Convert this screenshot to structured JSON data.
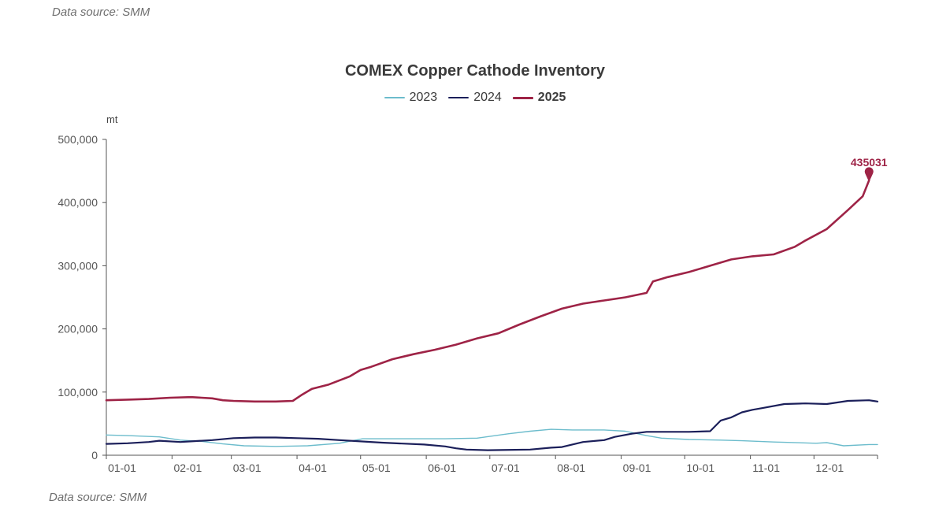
{
  "page": {
    "source_top": "Data source:  SMM",
    "source_bottom": "Data source:  SMM"
  },
  "colors": {
    "s2023": "#6cbccc",
    "s2024": "#1b1f5a",
    "s2025": "#9e2346",
    "axis": "#555555"
  },
  "chart_data": {
    "type": "line",
    "title": "COMEX Copper Cathode Inventory",
    "ylabel": "mt",
    "xlabel": "",
    "ylim": [
      0,
      500000
    ],
    "yticks": [
      0,
      100000,
      200000,
      300000,
      400000,
      500000
    ],
    "ytick_labels": [
      "0",
      "100,000",
      "200,000",
      "300,000",
      "400,000",
      "500,000"
    ],
    "xlim": [
      0,
      364
    ],
    "xticks": [
      0,
      31,
      59,
      90,
      120,
      151,
      181,
      212,
      243,
      273,
      304,
      334
    ],
    "xtick_labels": [
      "01-01",
      "02-01",
      "03-01",
      "04-01",
      "05-01",
      "06-01",
      "07-01",
      "08-01",
      "09-01",
      "10-01",
      "11-01",
      "12-01"
    ],
    "legend_position": "top-center",
    "series": [
      {
        "name": "2023",
        "color_key": "s2023",
        "bold": false,
        "x": [
          0,
          10,
          25,
          35,
          45,
          55,
          65,
          80,
          95,
          110,
          121,
          140,
          160,
          175,
          190,
          200,
          210,
          220,
          235,
          245,
          255,
          262,
          275,
          290,
          300,
          315,
          335,
          340,
          348,
          360,
          364
        ],
        "y": [
          32000,
          31000,
          29000,
          24000,
          22000,
          18000,
          15000,
          14000,
          15000,
          19000,
          26000,
          26000,
          26000,
          27000,
          34000,
          38000,
          41000,
          40000,
          40000,
          38000,
          31000,
          27000,
          25000,
          24000,
          23000,
          21000,
          19000,
          20000,
          15000,
          17000,
          17000
        ]
      },
      {
        "name": "2024",
        "color_key": "s2024",
        "bold": false,
        "x": [
          0,
          10,
          20,
          25,
          35,
          40,
          50,
          60,
          70,
          80,
          90,
          100,
          110,
          120,
          130,
          150,
          160,
          165,
          170,
          180,
          200,
          210,
          215,
          225,
          235,
          240,
          248,
          255,
          260,
          275,
          285,
          290,
          295,
          300,
          305,
          310,
          320,
          330,
          340,
          350,
          360,
          362,
          364
        ],
        "y": [
          18000,
          19000,
          21000,
          23000,
          21000,
          22000,
          24000,
          27000,
          28000,
          28000,
          27000,
          26000,
          24000,
          22000,
          20000,
          17000,
          14000,
          11000,
          9000,
          8000,
          9000,
          12000,
          13000,
          21000,
          24000,
          29000,
          34000,
          37000,
          37000,
          37000,
          38000,
          55000,
          60000,
          68000,
          72000,
          75000,
          81000,
          82000,
          81000,
          86000,
          87000,
          86000,
          85000
        ]
      },
      {
        "name": "2025",
        "color_key": "s2025",
        "bold": true,
        "x": [
          0,
          10,
          20,
          30,
          40,
          50,
          55,
          60,
          70,
          80,
          88,
          92,
          97,
          105,
          115,
          120,
          125,
          135,
          145,
          155,
          165,
          175,
          185,
          195,
          205,
          215,
          225,
          235,
          245,
          255,
          258,
          265,
          275,
          285,
          295,
          305,
          315,
          325,
          330,
          340,
          350,
          357,
          360
        ],
        "y": [
          87000,
          88000,
          89000,
          91000,
          92000,
          90000,
          87000,
          86000,
          85000,
          85000,
          86000,
          95000,
          105000,
          112000,
          125000,
          135000,
          140000,
          152000,
          160000,
          167000,
          175000,
          185000,
          193000,
          207000,
          220000,
          232000,
          240000,
          245000,
          250000,
          257000,
          275000,
          282000,
          290000,
          300000,
          310000,
          315000,
          318000,
          330000,
          340000,
          358000,
          388000,
          410000,
          435031
        ]
      }
    ],
    "annotation": {
      "series": "2025",
      "x": 360,
      "y": 435031,
      "text": "435031"
    }
  }
}
